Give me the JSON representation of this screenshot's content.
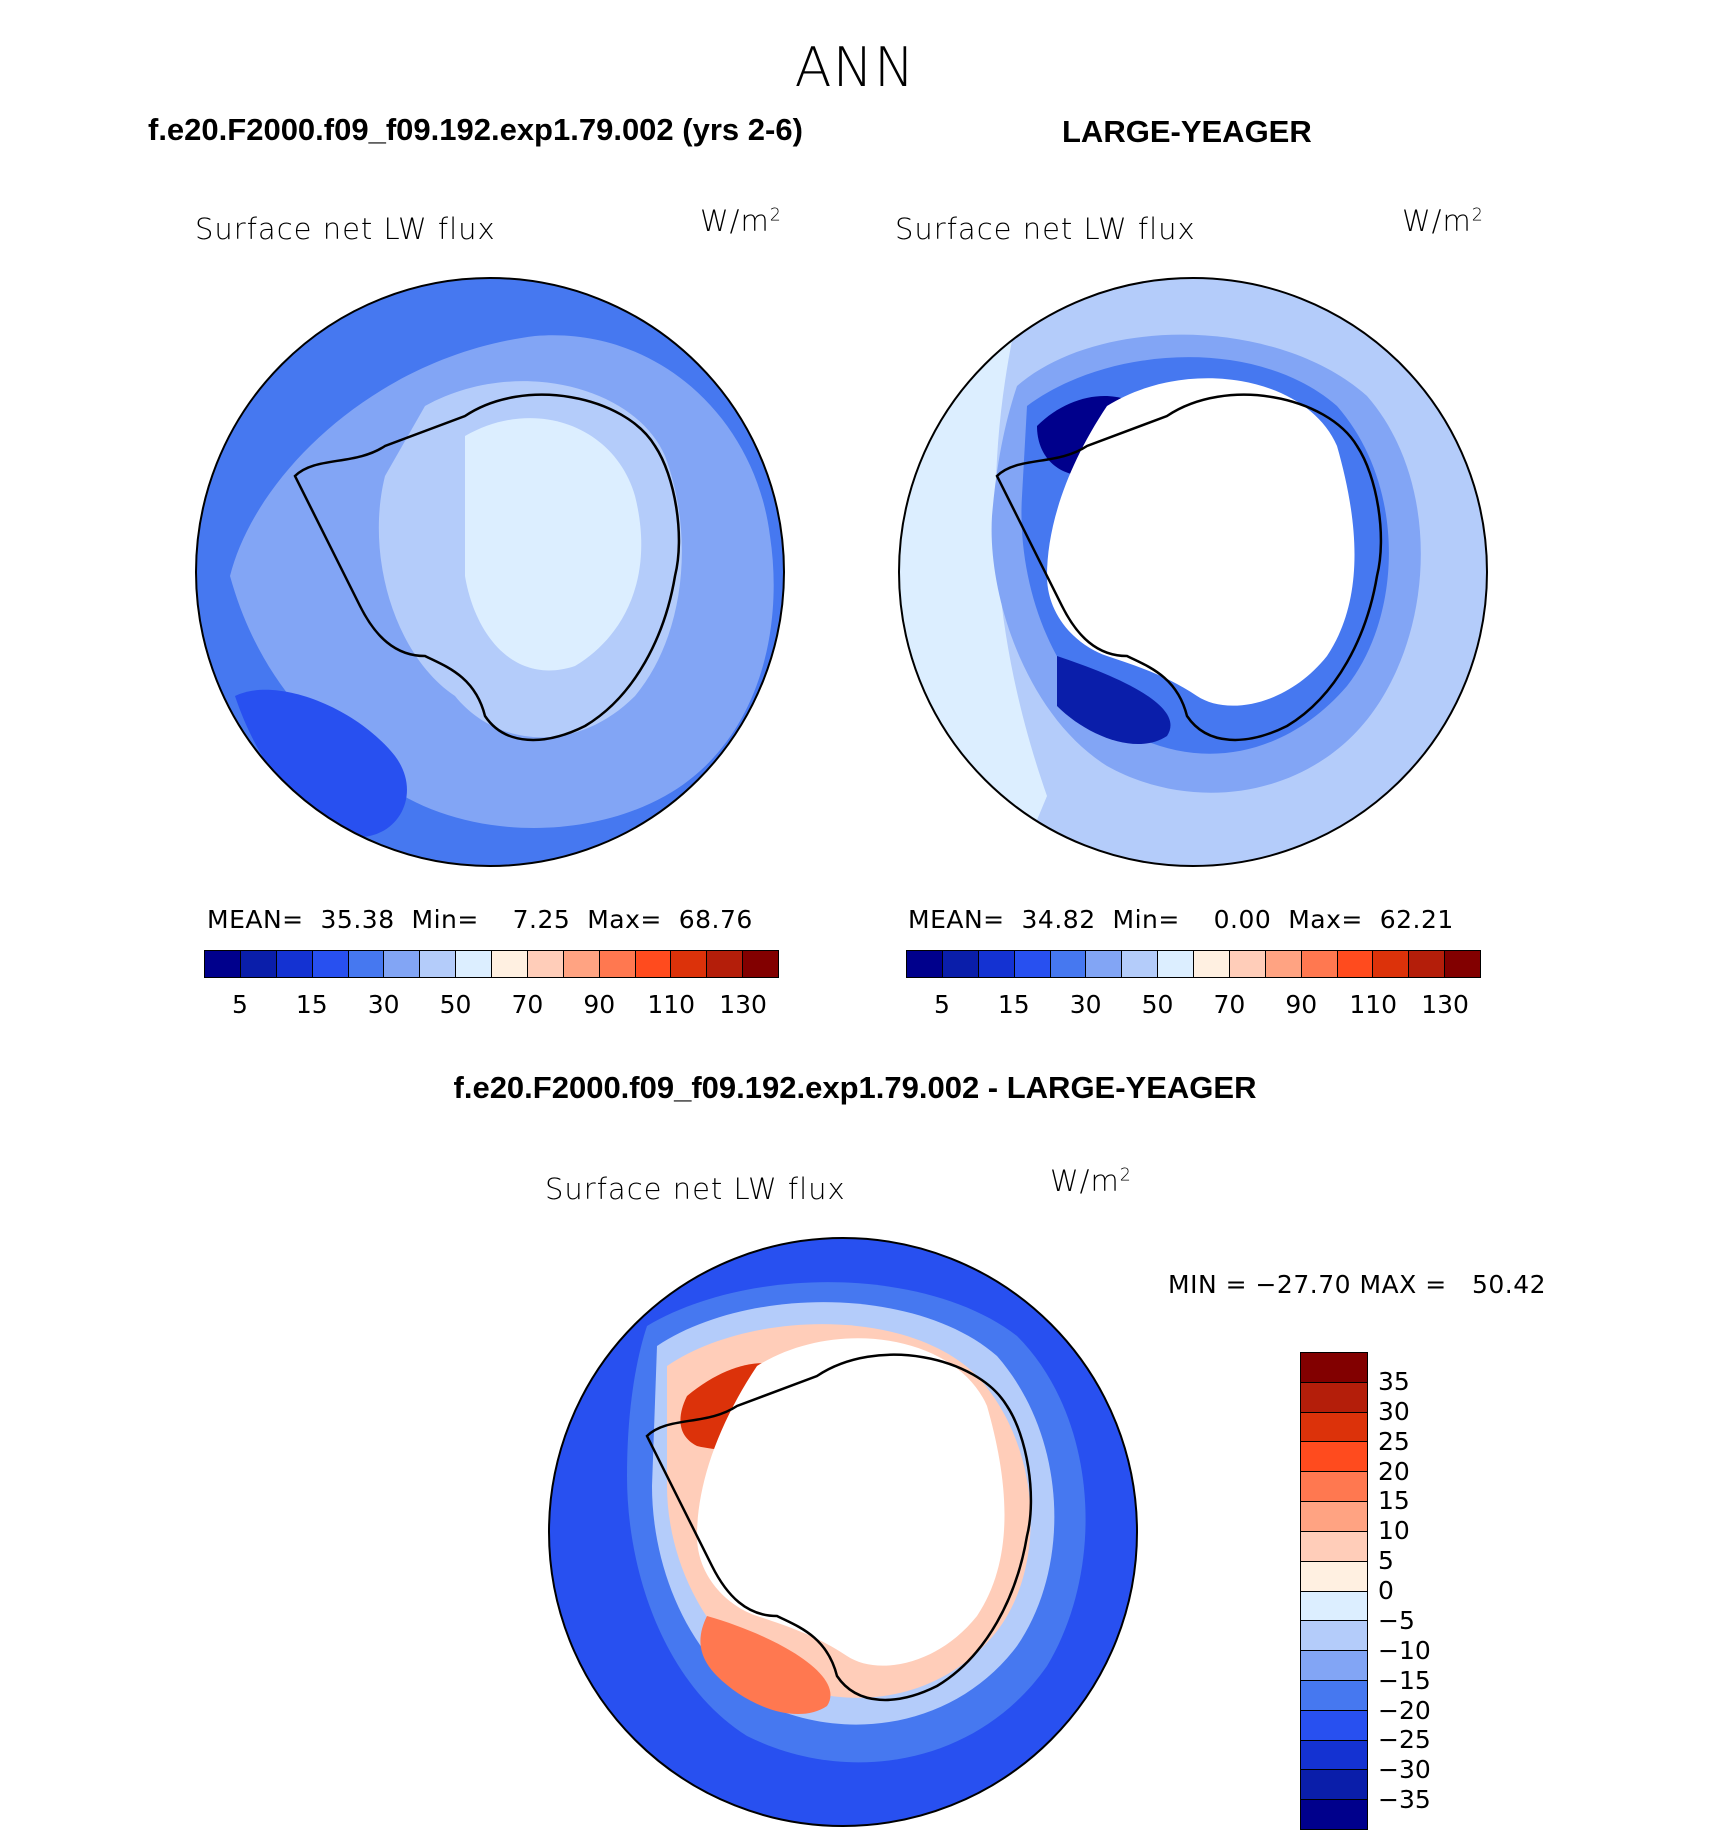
{
  "figure": {
    "title": "ANN",
    "left_header": "f.e20.F2000.f09_f09.192.exp1.79.002 (yrs 2-6)",
    "right_header": "LARGE-YEAGER",
    "diff_header": "f.e20.F2000.f09_f09.192.exp1.79.002 - LARGE-YEAGER"
  },
  "panels": [
    {
      "variable": "Surface net LW flux",
      "units_base": "W/m",
      "units_exp": "2",
      "stats": {
        "mean_label": "MEAN=",
        "mean": "35.38",
        "min_label": "Min=",
        "min": "7.25",
        "max_label": "Max=",
        "max": "68.76"
      }
    },
    {
      "variable": "Surface net LW flux",
      "units_base": "W/m",
      "units_exp": "2",
      "stats": {
        "mean_label": "MEAN=",
        "mean": "34.82",
        "min_label": "Min=",
        "min": "0.00",
        "max_label": "Max=",
        "max": "62.21"
      }
    },
    {
      "variable": "Surface net LW flux",
      "units_base": "W/m",
      "units_exp": "2",
      "minmax_text": "MIN = −27.70 MAX =   50.42"
    }
  ],
  "chart_data": [
    {
      "type": "heatmap",
      "projection": "south-polar-stereographic",
      "variable": "Surface net LW flux",
      "units": "W/m2",
      "stats": {
        "mean": 35.38,
        "min": 7.25,
        "max": 68.76
      },
      "colorbar": {
        "orientation": "horizontal",
        "tick_labels": [
          "5",
          "15",
          "30",
          "50",
          "70",
          "90",
          "110",
          "130"
        ],
        "colors": [
          "#00008c",
          "#0a1eaa",
          "#1432d2",
          "#2850f0",
          "#4678f0",
          "#82a5f5",
          "#b4ccfa",
          "#dceeff",
          "#fff0e1",
          "#ffcdb9",
          "#ffa382",
          "#ff7850",
          "#ff4b1e",
          "#dc320a",
          "#b41e0a",
          "#820000"
        ]
      },
      "description": "Values mostly 30-50 over Southern Ocean; 50-70 over Antarctic interior"
    },
    {
      "type": "heatmap",
      "projection": "south-polar-stereographic",
      "variable": "Surface net LW flux",
      "units": "W/m2",
      "stats": {
        "mean": 34.82,
        "min": 0.0,
        "max": 62.21
      },
      "colorbar": {
        "orientation": "horizontal",
        "tick_labels": [
          "5",
          "15",
          "30",
          "50",
          "70",
          "90",
          "110",
          "130"
        ],
        "colors": [
          "#00008c",
          "#0a1eaa",
          "#1432d2",
          "#2850f0",
          "#4678f0",
          "#82a5f5",
          "#b4ccfa",
          "#dceeff",
          "#fff0e1",
          "#ffcdb9",
          "#ffa382",
          "#ff7850",
          "#ff4b1e",
          "#dc320a",
          "#b41e0a",
          "#820000"
        ]
      },
      "description": "Low values near Antarctic coast, continent masked (white)"
    },
    {
      "type": "heatmap",
      "projection": "south-polar-stereographic",
      "variable": "Surface net LW flux",
      "units": "W/m2",
      "stats": {
        "min": -27.7,
        "max": 50.42
      },
      "colorbar": {
        "orientation": "vertical",
        "tick_labels": [
          "35",
          "30",
          "25",
          "20",
          "15",
          "10",
          "5",
          "0",
          "−5",
          "−10",
          "−15",
          "−20",
          "−25",
          "−30",
          "−35"
        ],
        "colors": [
          "#820000",
          "#b41e0a",
          "#dc320a",
          "#ff4b1e",
          "#ff7850",
          "#ffa382",
          "#ffcdb9",
          "#fff0e1",
          "#dceeff",
          "#b4ccfa",
          "#82a5f5",
          "#4678f0",
          "#2850f0",
          "#1432d2",
          "#0a1eaa",
          "#00008c"
        ]
      },
      "description": "Positive differences ring the Antarctic coast, negative values offshore"
    }
  ]
}
